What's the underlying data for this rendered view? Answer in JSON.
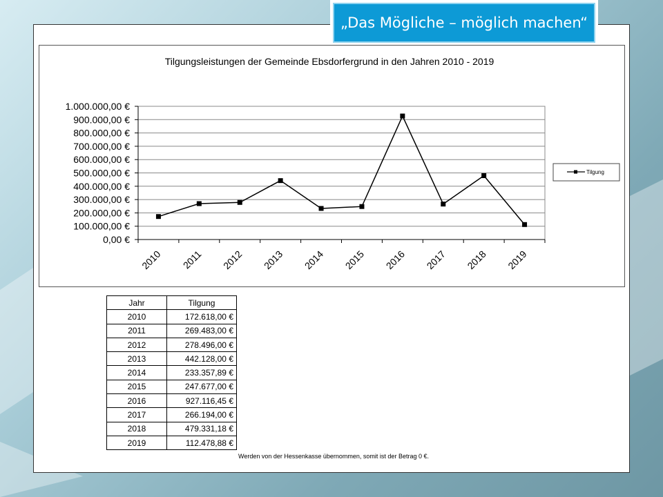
{
  "header": {
    "slogan": "„Das Mögliche – möglich machen“"
  },
  "chart_data": {
    "type": "line",
    "title": "Tilgungsleistungen der Gemeinde Ebsdorfergrund in den Jahren 2010 - 2019",
    "categories": [
      "2010",
      "2011",
      "2012",
      "2013",
      "2014",
      "2015",
      "2016",
      "2017",
      "2018",
      "2019"
    ],
    "series": [
      {
        "name": "Tilgung",
        "values": [
          172618.0,
          269483.0,
          278496.0,
          442128.0,
          233357.89,
          247677.0,
          927116.45,
          266194.0,
          479331.18,
          112478.88
        ]
      }
    ],
    "ylim": [
      0,
      1000000
    ],
    "yticks": [
      0,
      100000,
      200000,
      300000,
      400000,
      500000,
      600000,
      700000,
      800000,
      900000,
      1000000
    ],
    "ytick_labels": [
      "0,00 €",
      "100.000,00 €",
      "200.000,00 €",
      "300.000,00 €",
      "400.000,00 €",
      "500.000,00 €",
      "600.000,00 €",
      "700.000,00 €",
      "800.000,00 €",
      "900.000,00 €",
      "1.000.000,00 €"
    ],
    "grid": true,
    "legend": "right",
    "line_color": "#000000"
  },
  "table": {
    "headers": [
      "Jahr",
      "Tilgung"
    ],
    "rows": [
      [
        "2010",
        "172.618,00 €"
      ],
      [
        "2011",
        "269.483,00 €"
      ],
      [
        "2012",
        "278.496,00 €"
      ],
      [
        "2013",
        "442.128,00 €"
      ],
      [
        "2014",
        "233.357,89 €"
      ],
      [
        "2015",
        "247.677,00 €"
      ],
      [
        "2016",
        "927.116,45 €"
      ],
      [
        "2017",
        "266.194,00 €"
      ],
      [
        "2018",
        "479.331,18 €"
      ],
      [
        "2019",
        "112.478,88 €"
      ]
    ]
  },
  "footnote": "Werden von der Hessenkasse übernommen, somit ist der Betrag 0 €."
}
